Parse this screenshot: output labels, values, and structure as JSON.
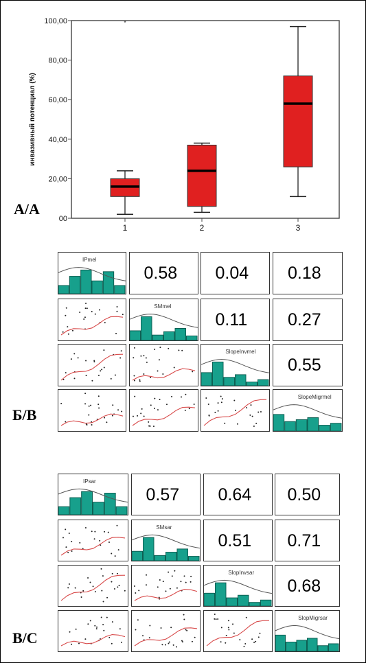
{
  "panels": {
    "a": "А/A",
    "b": "Б/B",
    "c": "B/C"
  },
  "chart_data": [
    {
      "type": "box",
      "ylabel": "инвазивный потенциал (%)",
      "categories": [
        "1",
        "2",
        "3"
      ],
      "ylim": [
        0,
        100
      ],
      "yticks": [
        "00",
        "20,00",
        "40,00",
        "60,00",
        "80,00",
        "100,00"
      ],
      "boxes": [
        {
          "category": "1",
          "min": 2,
          "q1": 11,
          "median": 16,
          "q3": 20,
          "max": 24,
          "outliers": [
            99
          ]
        },
        {
          "category": "2",
          "min": 3,
          "q1": 6,
          "median": 24,
          "q3": 37,
          "max": 38,
          "outliers": []
        },
        {
          "category": "3",
          "min": 11,
          "q1": 26,
          "median": 58,
          "q3": 72,
          "max": 97,
          "outliers": []
        }
      ],
      "box_color": "#e02020"
    },
    {
      "type": "scatter-matrix",
      "variables": [
        "IPmel",
        "SMmel",
        "SlopeInvmel",
        "SlopeMigrmel"
      ],
      "correlations": [
        {
          "row": 0,
          "col": 1,
          "value": "0.58"
        },
        {
          "row": 0,
          "col": 2,
          "value": "0.04"
        },
        {
          "row": 0,
          "col": 3,
          "value": "0.18"
        },
        {
          "row": 1,
          "col": 2,
          "value": "0.11"
        },
        {
          "row": 1,
          "col": 3,
          "value": "0.27"
        },
        {
          "row": 2,
          "col": 3,
          "value": "0.55"
        }
      ],
      "hist_color": "#17a08c"
    },
    {
      "type": "scatter-matrix",
      "variables": [
        "IPsar",
        "SMsar",
        "SlopInvsar",
        "SlopMigrsar"
      ],
      "correlations": [
        {
          "row": 0,
          "col": 1,
          "value": "0.57"
        },
        {
          "row": 0,
          "col": 2,
          "value": "0.64"
        },
        {
          "row": 0,
          "col": 3,
          "value": "0.50"
        },
        {
          "row": 1,
          "col": 2,
          "value": "0.51"
        },
        {
          "row": 1,
          "col": 3,
          "value": "0.71"
        },
        {
          "row": 2,
          "col": 3,
          "value": "0.68"
        }
      ],
      "hist_color": "#17a08c"
    }
  ]
}
